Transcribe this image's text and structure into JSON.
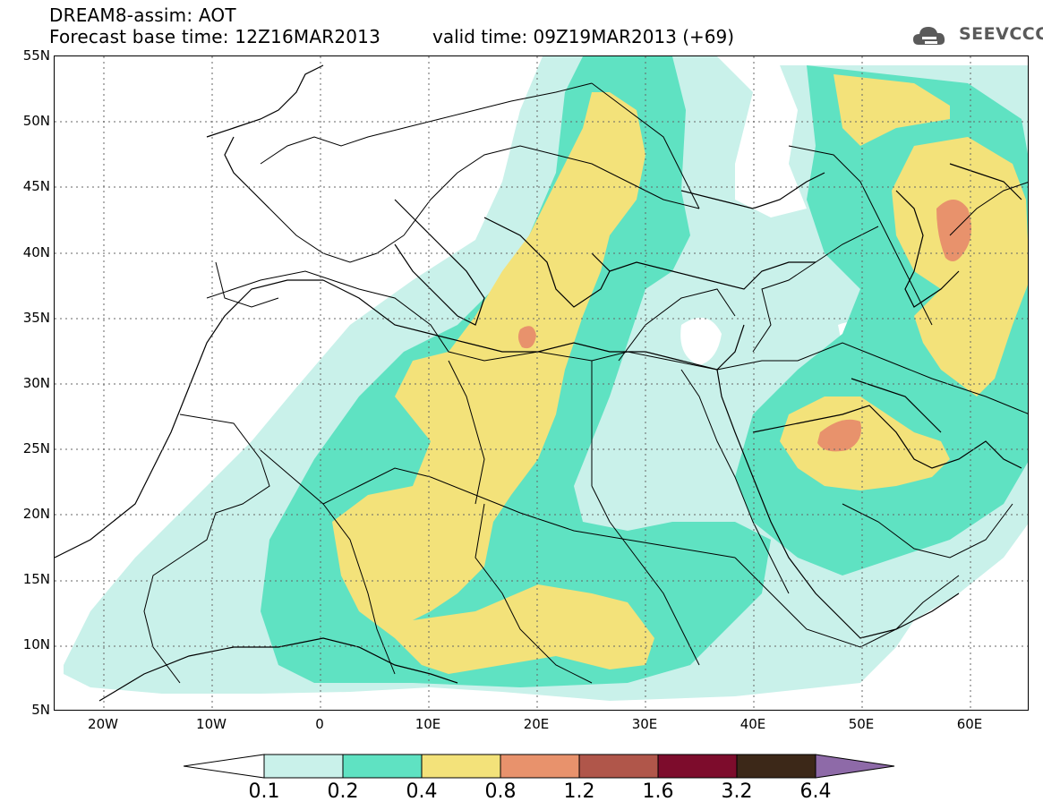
{
  "header": {
    "line1": "DREAM8-assim: AOT",
    "line2": "Forecast base time: 12Z16MAR2013",
    "valid": "valid time: 09Z19MAR2013 (+69)",
    "logo_text": "SEEVCCC",
    "logo_icon": "cloud-logo-icon"
  },
  "map": {
    "lon_range": [
      -25,
      65
    ],
    "lat_range": [
      5,
      55
    ],
    "lat_labels": [
      "55N",
      "50N",
      "45N",
      "40N",
      "35N",
      "30N",
      "25N",
      "20N",
      "15N",
      "10N",
      "5N"
    ],
    "lon_labels": [
      "20W",
      "10W",
      "0",
      "10E",
      "20E",
      "30E",
      "40E",
      "50E",
      "60E"
    ],
    "grid": "dotted"
  },
  "colorbar": {
    "labels": [
      "0.1",
      "0.2",
      "0.4",
      "0.8",
      "1.2",
      "1.6",
      "3.2",
      "6.4"
    ],
    "colors": [
      "#ffffff",
      "#c9f1ea",
      "#5fe2c2",
      "#f3e27a",
      "#e8926c",
      "#b0564a",
      "#7d0c2c",
      "#3c2818",
      "#8e6aa8"
    ]
  },
  "colors": {
    "level_01_02": "#c9f1ea",
    "level_02_04": "#5fe2c2",
    "level_04_08": "#f3e27a",
    "level_08_12": "#e8926c",
    "border": "#000000"
  }
}
